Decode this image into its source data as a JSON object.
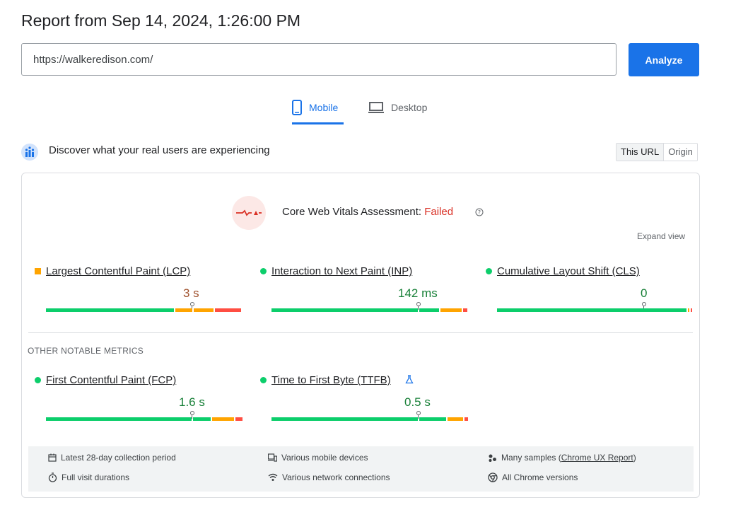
{
  "report": {
    "title": "Report from Sep 14, 2024, 1:26:00 PM"
  },
  "search": {
    "url_value": "https://walkeredison.com/",
    "analyze_label": "Analyze"
  },
  "tabs": [
    {
      "label": "Mobile",
      "selected": true,
      "icon": "phone-icon"
    },
    {
      "label": "Desktop",
      "selected": false,
      "icon": "laptop-icon"
    }
  ],
  "field": {
    "heading": "Discover what your real users are experiencing",
    "toggle": {
      "this_url": "This URL",
      "origin": "Origin",
      "selected": "This URL"
    }
  },
  "assessment": {
    "label": "Core Web Vitals Assessment:",
    "status": "Failed",
    "status_color": "#d93025"
  },
  "expand_label": "Expand view",
  "core_metrics": [
    {
      "name": "Largest Contentful Paint (LCP)",
      "value": "3 s",
      "rating": "average"
    },
    {
      "name": "Interaction to Next Paint (INP)",
      "value": "142 ms",
      "rating": "good"
    },
    {
      "name": "Cumulative Layout Shift (CLS)",
      "value": "0",
      "rating": "good"
    }
  ],
  "other_heading": "OTHER NOTABLE METRICS",
  "other_metrics": [
    {
      "name": "First Contentful Paint (FCP)",
      "value": "1.6 s",
      "rating": "good"
    },
    {
      "name": "Time to First Byte (TTFB)",
      "value": "0.5 s",
      "rating": "good",
      "experimental": true
    }
  ],
  "info": {
    "period": "Latest 28-day collection period",
    "devices": "Various mobile devices",
    "samples_prefix": "Many samples (",
    "samples_link": "Chrome UX Report",
    "samples_suffix": ")",
    "durations": "Full visit durations",
    "network": "Various network connections",
    "chrome": "All Chrome versions"
  },
  "colors": {
    "good": "#0cce6b",
    "average": "#ffa400",
    "poor": "#ff4e42",
    "accent": "#1a73e8"
  }
}
